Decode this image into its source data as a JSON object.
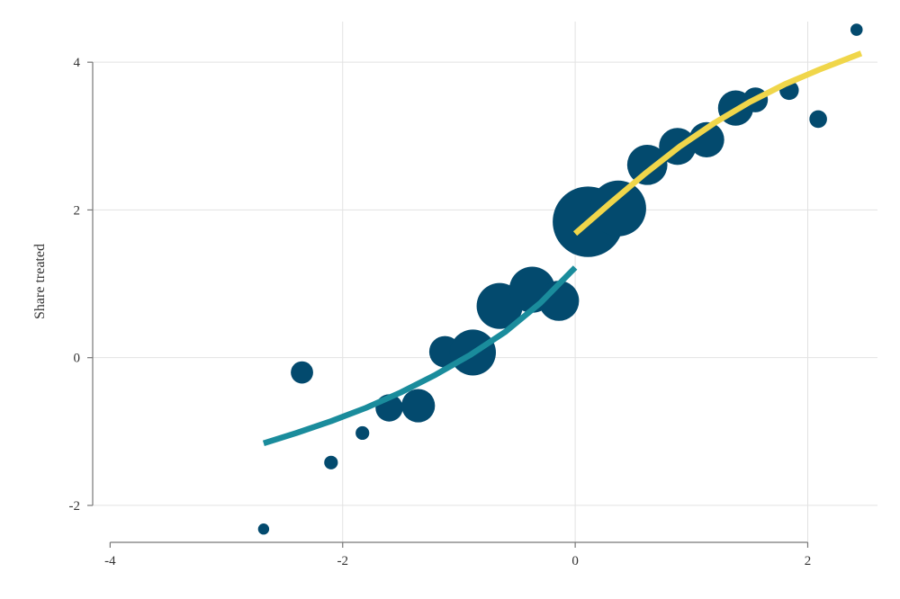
{
  "chart_data": {
    "type": "scatter",
    "title": "",
    "xlabel": "",
    "ylabel": "Share treated",
    "xlim": [
      -4.15,
      2.6
    ],
    "ylim": [
      -2.5,
      4.55
    ],
    "xticks": [
      -4,
      -2,
      0,
      2
    ],
    "yticks": [
      -2,
      0,
      2,
      4
    ],
    "grid": true,
    "legend": "none",
    "colors": {
      "points": "#034a6e",
      "fit_left": "#1a8c9c",
      "fit_right": "#f0d64a",
      "grid": "#e2e2e2",
      "axis": "#777777"
    },
    "points": [
      {
        "x": -2.68,
        "y": -2.32,
        "w": 1
      },
      {
        "x": -2.35,
        "y": -0.2,
        "w": 4
      },
      {
        "x": -2.1,
        "y": -1.42,
        "w": 1.5
      },
      {
        "x": -1.83,
        "y": -1.02,
        "w": 1.5
      },
      {
        "x": -1.6,
        "y": -0.68,
        "w": 6
      },
      {
        "x": -1.35,
        "y": -0.65,
        "w": 9
      },
      {
        "x": -1.12,
        "y": 0.08,
        "w": 8
      },
      {
        "x": -0.88,
        "y": 0.07,
        "w": 17
      },
      {
        "x": -0.65,
        "y": 0.7,
        "w": 17
      },
      {
        "x": -0.37,
        "y": 0.92,
        "w": 17
      },
      {
        "x": -0.14,
        "y": 0.77,
        "w": 13
      },
      {
        "x": 0.11,
        "y": 1.84,
        "w": 40
      },
      {
        "x": 0.37,
        "y": 2.02,
        "w": 25
      },
      {
        "x": 0.62,
        "y": 2.61,
        "w": 13
      },
      {
        "x": 0.88,
        "y": 2.86,
        "w": 11
      },
      {
        "x": 1.13,
        "y": 2.95,
        "w": 10
      },
      {
        "x": 1.38,
        "y": 3.38,
        "w": 10
      },
      {
        "x": 1.55,
        "y": 3.49,
        "w": 5
      },
      {
        "x": 1.84,
        "y": 3.62,
        "w": 3
      },
      {
        "x": 2.09,
        "y": 3.23,
        "w": 2.5
      },
      {
        "x": 2.42,
        "y": 4.44,
        "w": 1.2
      }
    ],
    "fit_left": {
      "x": [
        -2.68,
        -2.4,
        -2.1,
        -1.8,
        -1.5,
        -1.2,
        -0.9,
        -0.6,
        -0.3,
        0
      ],
      "y": [
        -1.16,
        -1.02,
        -0.86,
        -0.68,
        -0.47,
        -0.23,
        0.04,
        0.35,
        0.74,
        1.22
      ]
    },
    "fit_right": {
      "x": [
        0,
        0.3,
        0.6,
        0.9,
        1.2,
        1.5,
        1.8,
        2.1,
        2.46
      ],
      "y": [
        1.68,
        2.09,
        2.49,
        2.86,
        3.18,
        3.46,
        3.7,
        3.9,
        4.12
      ]
    }
  }
}
